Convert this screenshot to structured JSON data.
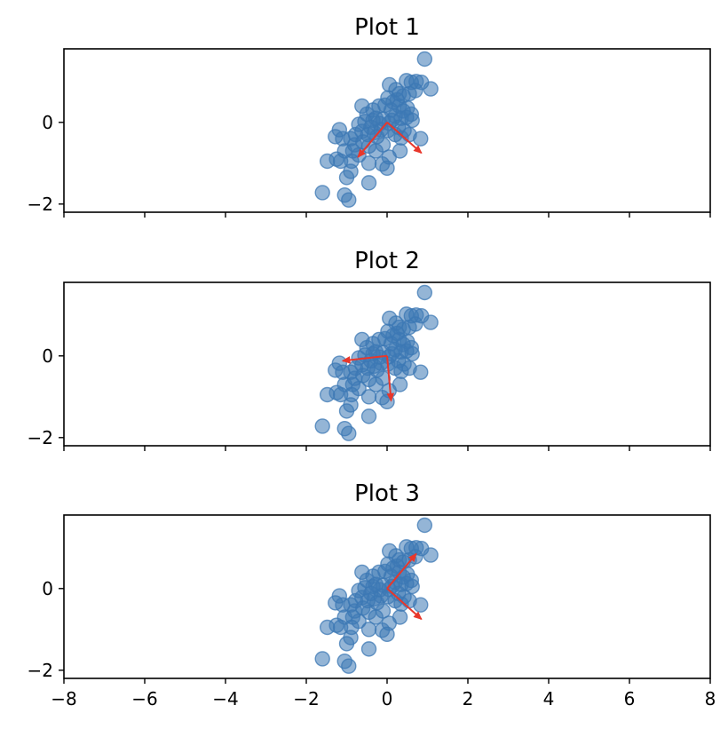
{
  "chart_data": {
    "shared": {
      "type": "scatter",
      "xlim": [
        -8,
        8
      ],
      "ylim": [
        -2.2,
        1.8
      ],
      "xticks": [
        -8,
        -6,
        -4,
        -2,
        0,
        2,
        4,
        6,
        8
      ],
      "xtick_labels": [
        "−8",
        "−6",
        "−4",
        "−2",
        "0",
        "2",
        "4",
        "6",
        "8"
      ],
      "yticks": [
        -2,
        0
      ],
      "ytick_labels": [
        "−2",
        "0"
      ],
      "x_tick_labels_shown_on": "bottom panel only",
      "grid": false,
      "point_color": "#3c78b4",
      "arrow_color": "#e8372b",
      "points": [
        [
          0.93,
          1.55
        ],
        [
          1.08,
          0.82
        ],
        [
          0.85,
          0.98
        ],
        [
          0.72,
          1.0
        ],
        [
          0.6,
          0.98
        ],
        [
          0.48,
          1.02
        ],
        [
          0.7,
          0.78
        ],
        [
          0.55,
          0.7
        ],
        [
          0.4,
          0.65
        ],
        [
          0.3,
          0.7
        ],
        [
          0.22,
          0.8
        ],
        [
          0.06,
          0.92
        ],
        [
          0.02,
          0.6
        ],
        [
          0.15,
          0.5
        ],
        [
          0.3,
          0.4
        ],
        [
          0.4,
          0.28
        ],
        [
          0.5,
          0.35
        ],
        [
          0.6,
          0.2
        ],
        [
          0.62,
          0.05
        ],
        [
          0.48,
          0.12
        ],
        [
          0.35,
          0.1
        ],
        [
          0.2,
          0.15
        ],
        [
          0.1,
          0.3
        ],
        [
          -0.05,
          0.42
        ],
        [
          -0.2,
          0.4
        ],
        [
          -0.35,
          0.3
        ],
        [
          -0.5,
          0.2
        ],
        [
          -0.62,
          0.4
        ],
        [
          -0.28,
          0.1
        ],
        [
          -0.1,
          0.08
        ],
        [
          -0.35,
          0.05
        ],
        [
          -0.55,
          0.02
        ],
        [
          -0.7,
          -0.05
        ],
        [
          -0.18,
          -0.03
        ],
        [
          0.05,
          -0.02
        ],
        [
          0.28,
          -0.12
        ],
        [
          0.42,
          -0.2
        ],
        [
          0.55,
          -0.3
        ],
        [
          0.83,
          -0.4
        ],
        [
          0.35,
          -0.38
        ],
        [
          0.2,
          -0.3
        ],
        [
          0.02,
          -0.2
        ],
        [
          -0.15,
          -0.18
        ],
        [
          -0.32,
          -0.25
        ],
        [
          -0.48,
          -0.3
        ],
        [
          -0.62,
          -0.22
        ],
        [
          -0.78,
          -0.3
        ],
        [
          -0.9,
          -0.4
        ],
        [
          -1.18,
          -0.18
        ],
        [
          -1.28,
          -0.35
        ],
        [
          -1.1,
          -0.4
        ],
        [
          -0.8,
          -0.55
        ],
        [
          -0.6,
          -0.48
        ],
        [
          -0.45,
          -0.58
        ],
        [
          -0.28,
          -0.7
        ],
        [
          -0.1,
          -0.55
        ],
        [
          0.05,
          -0.85
        ],
        [
          0.32,
          -0.7
        ],
        [
          -0.85,
          -0.7
        ],
        [
          -0.7,
          -0.8
        ],
        [
          -1.05,
          -0.7
        ],
        [
          -1.25,
          -0.9
        ],
        [
          -1.48,
          -0.95
        ],
        [
          -1.15,
          -0.95
        ],
        [
          -0.88,
          -0.95
        ],
        [
          -0.45,
          -1.0
        ],
        [
          -0.12,
          -1.02
        ],
        [
          0.0,
          -1.12
        ],
        [
          -0.9,
          -1.2
        ],
        [
          -1.0,
          -1.35
        ],
        [
          -0.45,
          -1.48
        ],
        [
          -1.6,
          -1.72
        ],
        [
          -1.05,
          -1.78
        ],
        [
          -0.95,
          -1.9
        ],
        [
          -0.25,
          -0.35
        ],
        [
          0.12,
          0.05
        ],
        [
          -0.4,
          -0.12
        ],
        [
          0.25,
          0.55
        ]
      ]
    },
    "panels": [
      {
        "title": "Plot 1",
        "arrows": [
          {
            "x0": 0,
            "y0": 0,
            "x1": 0.85,
            "y1": -0.75
          },
          {
            "x0": 0,
            "y0": 0,
            "x1": -0.72,
            "y1": -0.85
          }
        ]
      },
      {
        "title": "Plot 2",
        "arrows": [
          {
            "x0": 0,
            "y0": 0,
            "x1": -1.1,
            "y1": -0.12
          },
          {
            "x0": 0,
            "y0": 0,
            "x1": 0.1,
            "y1": -1.1
          }
        ]
      },
      {
        "title": "Plot 3",
        "arrows": [
          {
            "x0": 0,
            "y0": 0,
            "x1": 0.85,
            "y1": -0.75
          },
          {
            "x0": 0,
            "y0": 0,
            "x1": 0.72,
            "y1": 0.85
          }
        ]
      }
    ]
  }
}
